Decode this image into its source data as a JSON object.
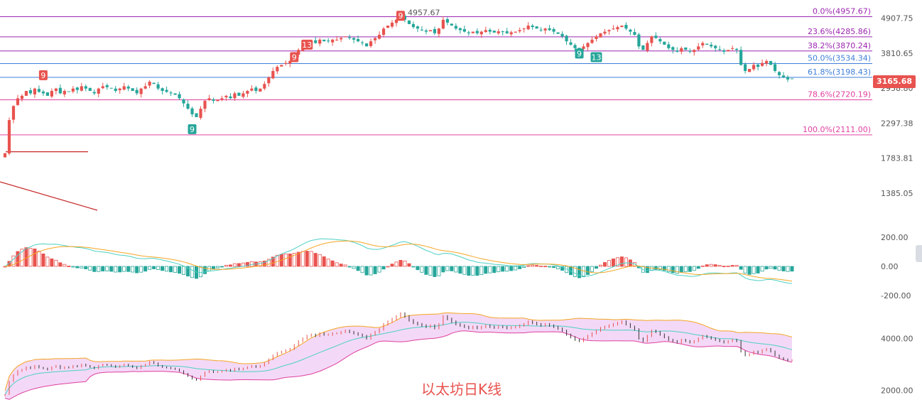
{
  "caption": "以太坊日K线",
  "current_price": "3165.68",
  "high_marker": "4957.67",
  "colors": {
    "up": "#e8534f",
    "down": "#26a69a",
    "fib": "#9c27b0",
    "fib_blue": "#3f7fd9",
    "fib_pink": "#e040a0",
    "dif": "#4dd0c4",
    "dea": "#f5a623",
    "boll_upper": "#f5a623",
    "boll_mid": "#4dd0c4",
    "boll_lower": "#e040a0",
    "boll_fill": "#f3d9f7"
  },
  "chart_data": [
    {
      "type": "candlestick",
      "panel": "price",
      "y_ticks": [
        "4907.75",
        "3810.65",
        "2958.80",
        "2297.38",
        "1783.81",
        "1385.05"
      ],
      "ylim": [
        1200,
        5100
      ],
      "fib_levels": [
        {
          "label": "0.0%(4957.67)",
          "price": 4957.67
        },
        {
          "label": "23.6%(4285.86)",
          "price": 4285.86
        },
        {
          "label": "38.2%(3870.24)",
          "price": 3870.24
        },
        {
          "label": "50.0%(3534.34)",
          "price": 3534.34
        },
        {
          "label": "61.8%(3198.43)",
          "price": 3198.43
        },
        {
          "label": "78.6%(2720.19)",
          "price": 2720.19
        },
        {
          "label": "100.0%(2111.00)",
          "price": 2111.0
        }
      ],
      "td_markers": [
        {
          "text": "9",
          "t": 9,
          "price": 3250,
          "dir": "up"
        },
        {
          "text": "9",
          "t": 44,
          "price": 2200,
          "dir": "down"
        },
        {
          "text": "9",
          "t": 68,
          "price": 3700,
          "dir": "up"
        },
        {
          "text": "13",
          "t": 71,
          "price": 4050,
          "dir": "up"
        },
        {
          "text": "9",
          "t": 93,
          "price": 4990,
          "dir": "up"
        },
        {
          "text": "9",
          "t": 135,
          "price": 3800,
          "dir": "down"
        },
        {
          "text": "13",
          "t": 139,
          "price": 3700,
          "dir": "down"
        }
      ],
      "closes": [
        1850,
        2350,
        2600,
        2750,
        2800,
        2900,
        2850,
        2950,
        2880,
        2850,
        2800,
        2900,
        2950,
        2850,
        2900,
        2880,
        2950,
        2920,
        3000,
        2950,
        2900,
        2850,
        2950,
        3000,
        2980,
        2950,
        2900,
        2950,
        3000,
        2950,
        2900,
        2850,
        2950,
        3000,
        3100,
        3050,
        2950,
        2900,
        2880,
        2850,
        2820,
        2750,
        2650,
        2550,
        2450,
        2400,
        2550,
        2700,
        2750,
        2700,
        2720,
        2750,
        2800,
        2750,
        2850,
        2800,
        2850,
        2900,
        2950,
        2900,
        2950,
        3050,
        3200,
        3350,
        3450,
        3500,
        3550,
        3600,
        3750,
        3900,
        4000,
        4100,
        4150,
        4100,
        4200,
        4150,
        4150,
        4200,
        4200,
        4250,
        4300,
        4250,
        4200,
        4150,
        4100,
        4000,
        4150,
        4250,
        4350,
        4550,
        4650,
        4750,
        4850,
        4957,
        4850,
        4700,
        4600,
        4550,
        4500,
        4450,
        4500,
        4400,
        4550,
        4850,
        4750,
        4650,
        4550,
        4500,
        4450,
        4400,
        4450,
        4400,
        4450,
        4500,
        4450,
        4420,
        4460,
        4440,
        4400,
        4430,
        4450,
        4500,
        4550,
        4650,
        4600,
        4550,
        4500,
        4550,
        4500,
        4450,
        4380,
        4300,
        4150,
        4050,
        3950,
        3900,
        4000,
        4100,
        4200,
        4300,
        4400,
        4450,
        4500,
        4550,
        4600,
        4650,
        4550,
        4450,
        4350,
        4000,
        3900,
        4100,
        4300,
        4250,
        4150,
        4050,
        3950,
        3900,
        3850,
        3950,
        3900,
        3850,
        3900,
        4000,
        4100,
        4050,
        4000,
        3950,
        3900,
        3850,
        3900,
        3950,
        3900,
        3500,
        3350,
        3400,
        3500,
        3450,
        3550,
        3600,
        3500,
        3350,
        3250,
        3200,
        3150,
        3165
      ]
    },
    {
      "type": "macd",
      "panel": "macd",
      "y_ticks": [
        "200.00",
        "0.00",
        "-200.00"
      ],
      "ylim": [
        -260,
        260
      ]
    },
    {
      "type": "bollinger",
      "panel": "boll",
      "y_ticks": [
        "4000.00",
        "2000.00"
      ],
      "ylim": [
        1500,
        5000
      ]
    }
  ]
}
